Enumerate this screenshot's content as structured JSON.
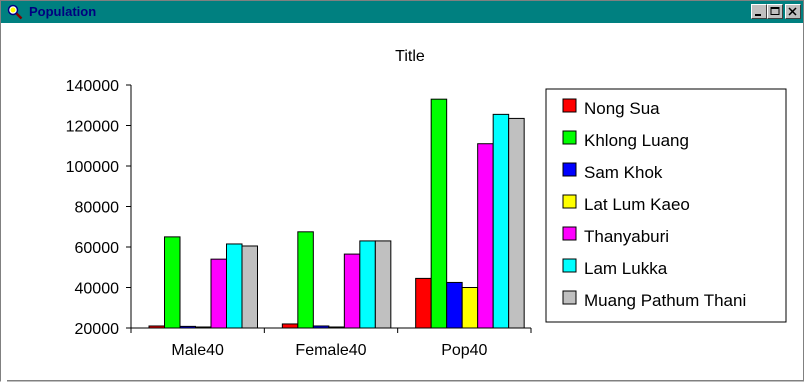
{
  "window": {
    "title": "Population",
    "app_icon": "magnifier-icon",
    "controls": {
      "minimize": "minimize-icon",
      "maximize": "maximize-icon",
      "close": "close-icon"
    },
    "title_bar_color": "#008080",
    "title_text_color": "#000080"
  },
  "chart_data": {
    "type": "bar",
    "title": "Title",
    "xlabel": "",
    "ylabel": "",
    "ylim": [
      20000,
      140000
    ],
    "yticks": [
      20000,
      40000,
      60000,
      80000,
      100000,
      120000,
      140000
    ],
    "yticklabels": [
      "20000",
      "40000",
      "60000",
      "80000",
      "100000",
      "120000",
      "140000"
    ],
    "categories": [
      "Male40",
      "Female40",
      "Pop40"
    ],
    "series": [
      {
        "name": "Nong Sua",
        "color": "#ff0000",
        "values": [
          21000,
          22000,
          44500
        ]
      },
      {
        "name": "Khlong Luang",
        "color": "#00ff00",
        "values": [
          65000,
          67500,
          133000
        ]
      },
      {
        "name": "Sam Khok",
        "color": "#0000ff",
        "values": [
          20800,
          21000,
          42500
        ]
      },
      {
        "name": "Lat Lum Kaeo",
        "color": "#ffff00",
        "values": [
          20500,
          20500,
          40000
        ]
      },
      {
        "name": "Thanyaburi",
        "color": "#ff00ff",
        "values": [
          54000,
          56500,
          111000
        ]
      },
      {
        "name": "Lam Lukka",
        "color": "#00ffff",
        "values": [
          61500,
          63000,
          125500
        ]
      },
      {
        "name": "Muang Pathum Thani",
        "color": "#c0c0c0",
        "values": [
          60500,
          63000,
          123500
        ]
      }
    ],
    "legend_position": "right",
    "grid": false
  }
}
